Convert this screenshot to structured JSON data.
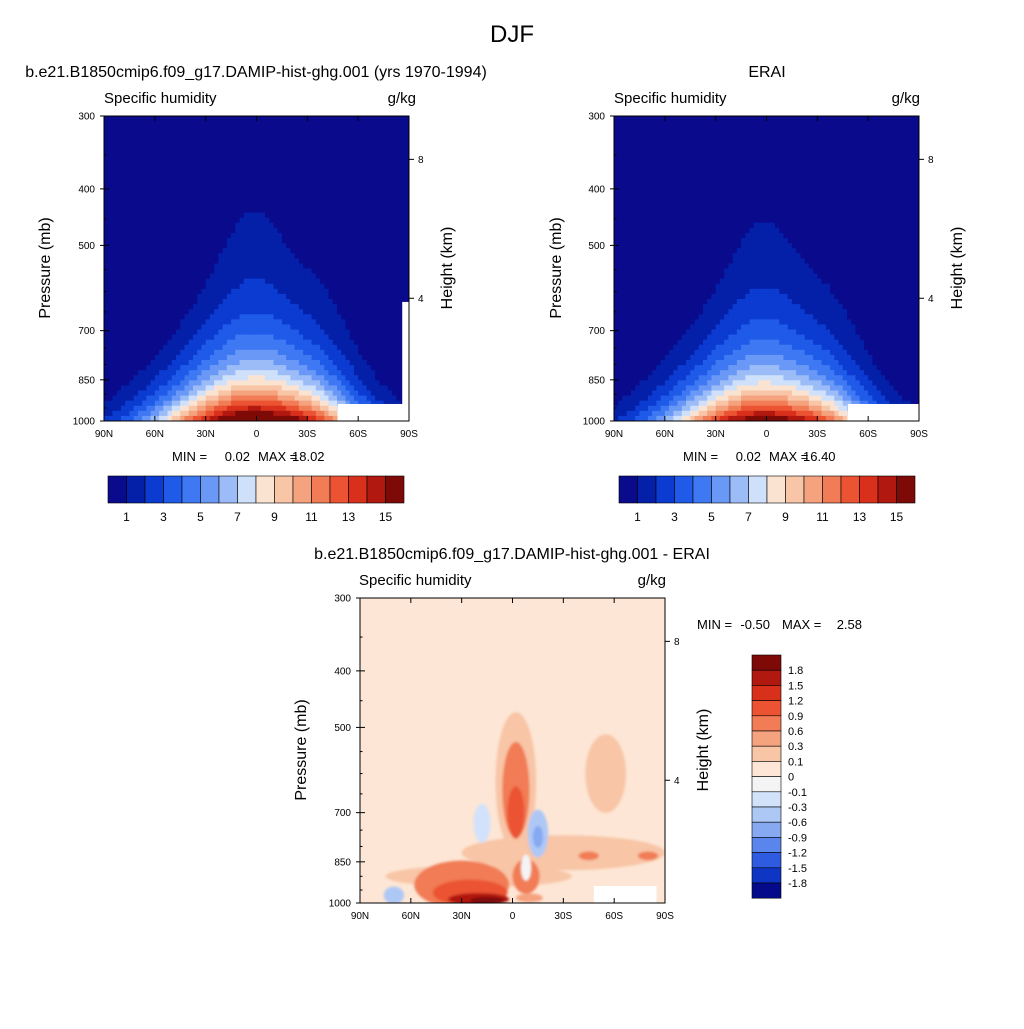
{
  "figure": {
    "title": "DJF"
  },
  "chart_data": [
    {
      "type": "contour",
      "panel_title": "b.e21.B1850cmip6.f09_g17.DAMIP-hist-ghg.001 (yrs 1970-1994)",
      "variable": "Specific humidity",
      "units": "g/kg",
      "ylabel": "Pressure (mb)",
      "ylabel_right": "Height (km)",
      "x_ticks": [
        "90N",
        "60N",
        "30N",
        "0",
        "30S",
        "60S",
        "90S"
      ],
      "y_ticks": [
        "300",
        "400",
        "500",
        "700",
        "850",
        "1000"
      ],
      "y_ticks_right": [
        "8",
        "4"
      ],
      "min_label": "MIN =",
      "min": "0.02",
      "max_label": "MAX =",
      "max": "18.02",
      "peak_value": 18.02,
      "peak_lat": 0,
      "levels": [
        1,
        2,
        3,
        4,
        5,
        6,
        7,
        8,
        9,
        10,
        11,
        12,
        13,
        14,
        15,
        16
      ],
      "colorbar_labels": [
        "1",
        "3",
        "5",
        "7",
        "9",
        "11",
        "13",
        "15"
      ]
    },
    {
      "type": "contour",
      "panel_title": "ERAI",
      "variable": "Specific humidity",
      "units": "g/kg",
      "ylabel": "Pressure (mb)",
      "ylabel_right": "Height (km)",
      "x_ticks": [
        "90N",
        "60N",
        "30N",
        "0",
        "30S",
        "60S",
        "90S"
      ],
      "y_ticks": [
        "300",
        "400",
        "500",
        "700",
        "850",
        "1000"
      ],
      "y_ticks_right": [
        "8",
        "4"
      ],
      "min_label": "MIN =",
      "min": "0.02",
      "max_label": "MAX =",
      "max": "16.40",
      "peak_value": 16.4,
      "peak_lat": 0,
      "levels": [
        1,
        2,
        3,
        4,
        5,
        6,
        7,
        8,
        9,
        10,
        11,
        12,
        13,
        14,
        15,
        16
      ],
      "colorbar_labels": [
        "1",
        "3",
        "5",
        "7",
        "9",
        "11",
        "13",
        "15"
      ]
    },
    {
      "type": "contour",
      "panel_title": "b.e21.B1850cmip6.f09_g17.DAMIP-hist-ghg.001 - ERAI",
      "variable": "Specific humidity",
      "units": "g/kg",
      "ylabel": "Pressure (mb)",
      "ylabel_right": "Height (km)",
      "x_ticks": [
        "90N",
        "60N",
        "30N",
        "0",
        "30S",
        "60S",
        "90S"
      ],
      "y_ticks": [
        "300",
        "400",
        "500",
        "700",
        "850",
        "1000"
      ],
      "y_ticks_right": [
        "8",
        "4"
      ],
      "min_label": "MIN =",
      "min": "-0.50",
      "max_label": "MAX =",
      "max": "2.58",
      "colorbar_labels": [
        "1.8",
        "1.5",
        "1.2",
        "0.9",
        "0.6",
        "0.3",
        "0.1",
        "0",
        "-0.1",
        "-0.3",
        "-0.6",
        "-0.9",
        "-1.2",
        "-1.5",
        "-1.8"
      ]
    }
  ],
  "colors": {
    "abs_palette": [
      "#0a0a8c",
      "#0420a8",
      "#0b3bd0",
      "#1f5ae8",
      "#3e78f2",
      "#6a98f6",
      "#9cbcf8",
      "#cfe0fb",
      "#fbe3d2",
      "#f8c5a6",
      "#f5a27f",
      "#f17c55",
      "#eb5333",
      "#d9301c",
      "#b01810",
      "#7e0a07"
    ],
    "diff_palette": [
      "#7e0a07",
      "#b01810",
      "#d9301c",
      "#eb5333",
      "#f17c55",
      "#f5a27f",
      "#f8c5a6",
      "#fde6d5",
      "#f4f4f4",
      "#d2e2fa",
      "#aec8f6",
      "#86a9f2",
      "#5a85ec",
      "#2f5be0",
      "#0f35c4",
      "#050a8a"
    ],
    "diff_background": "#fde6d5"
  }
}
